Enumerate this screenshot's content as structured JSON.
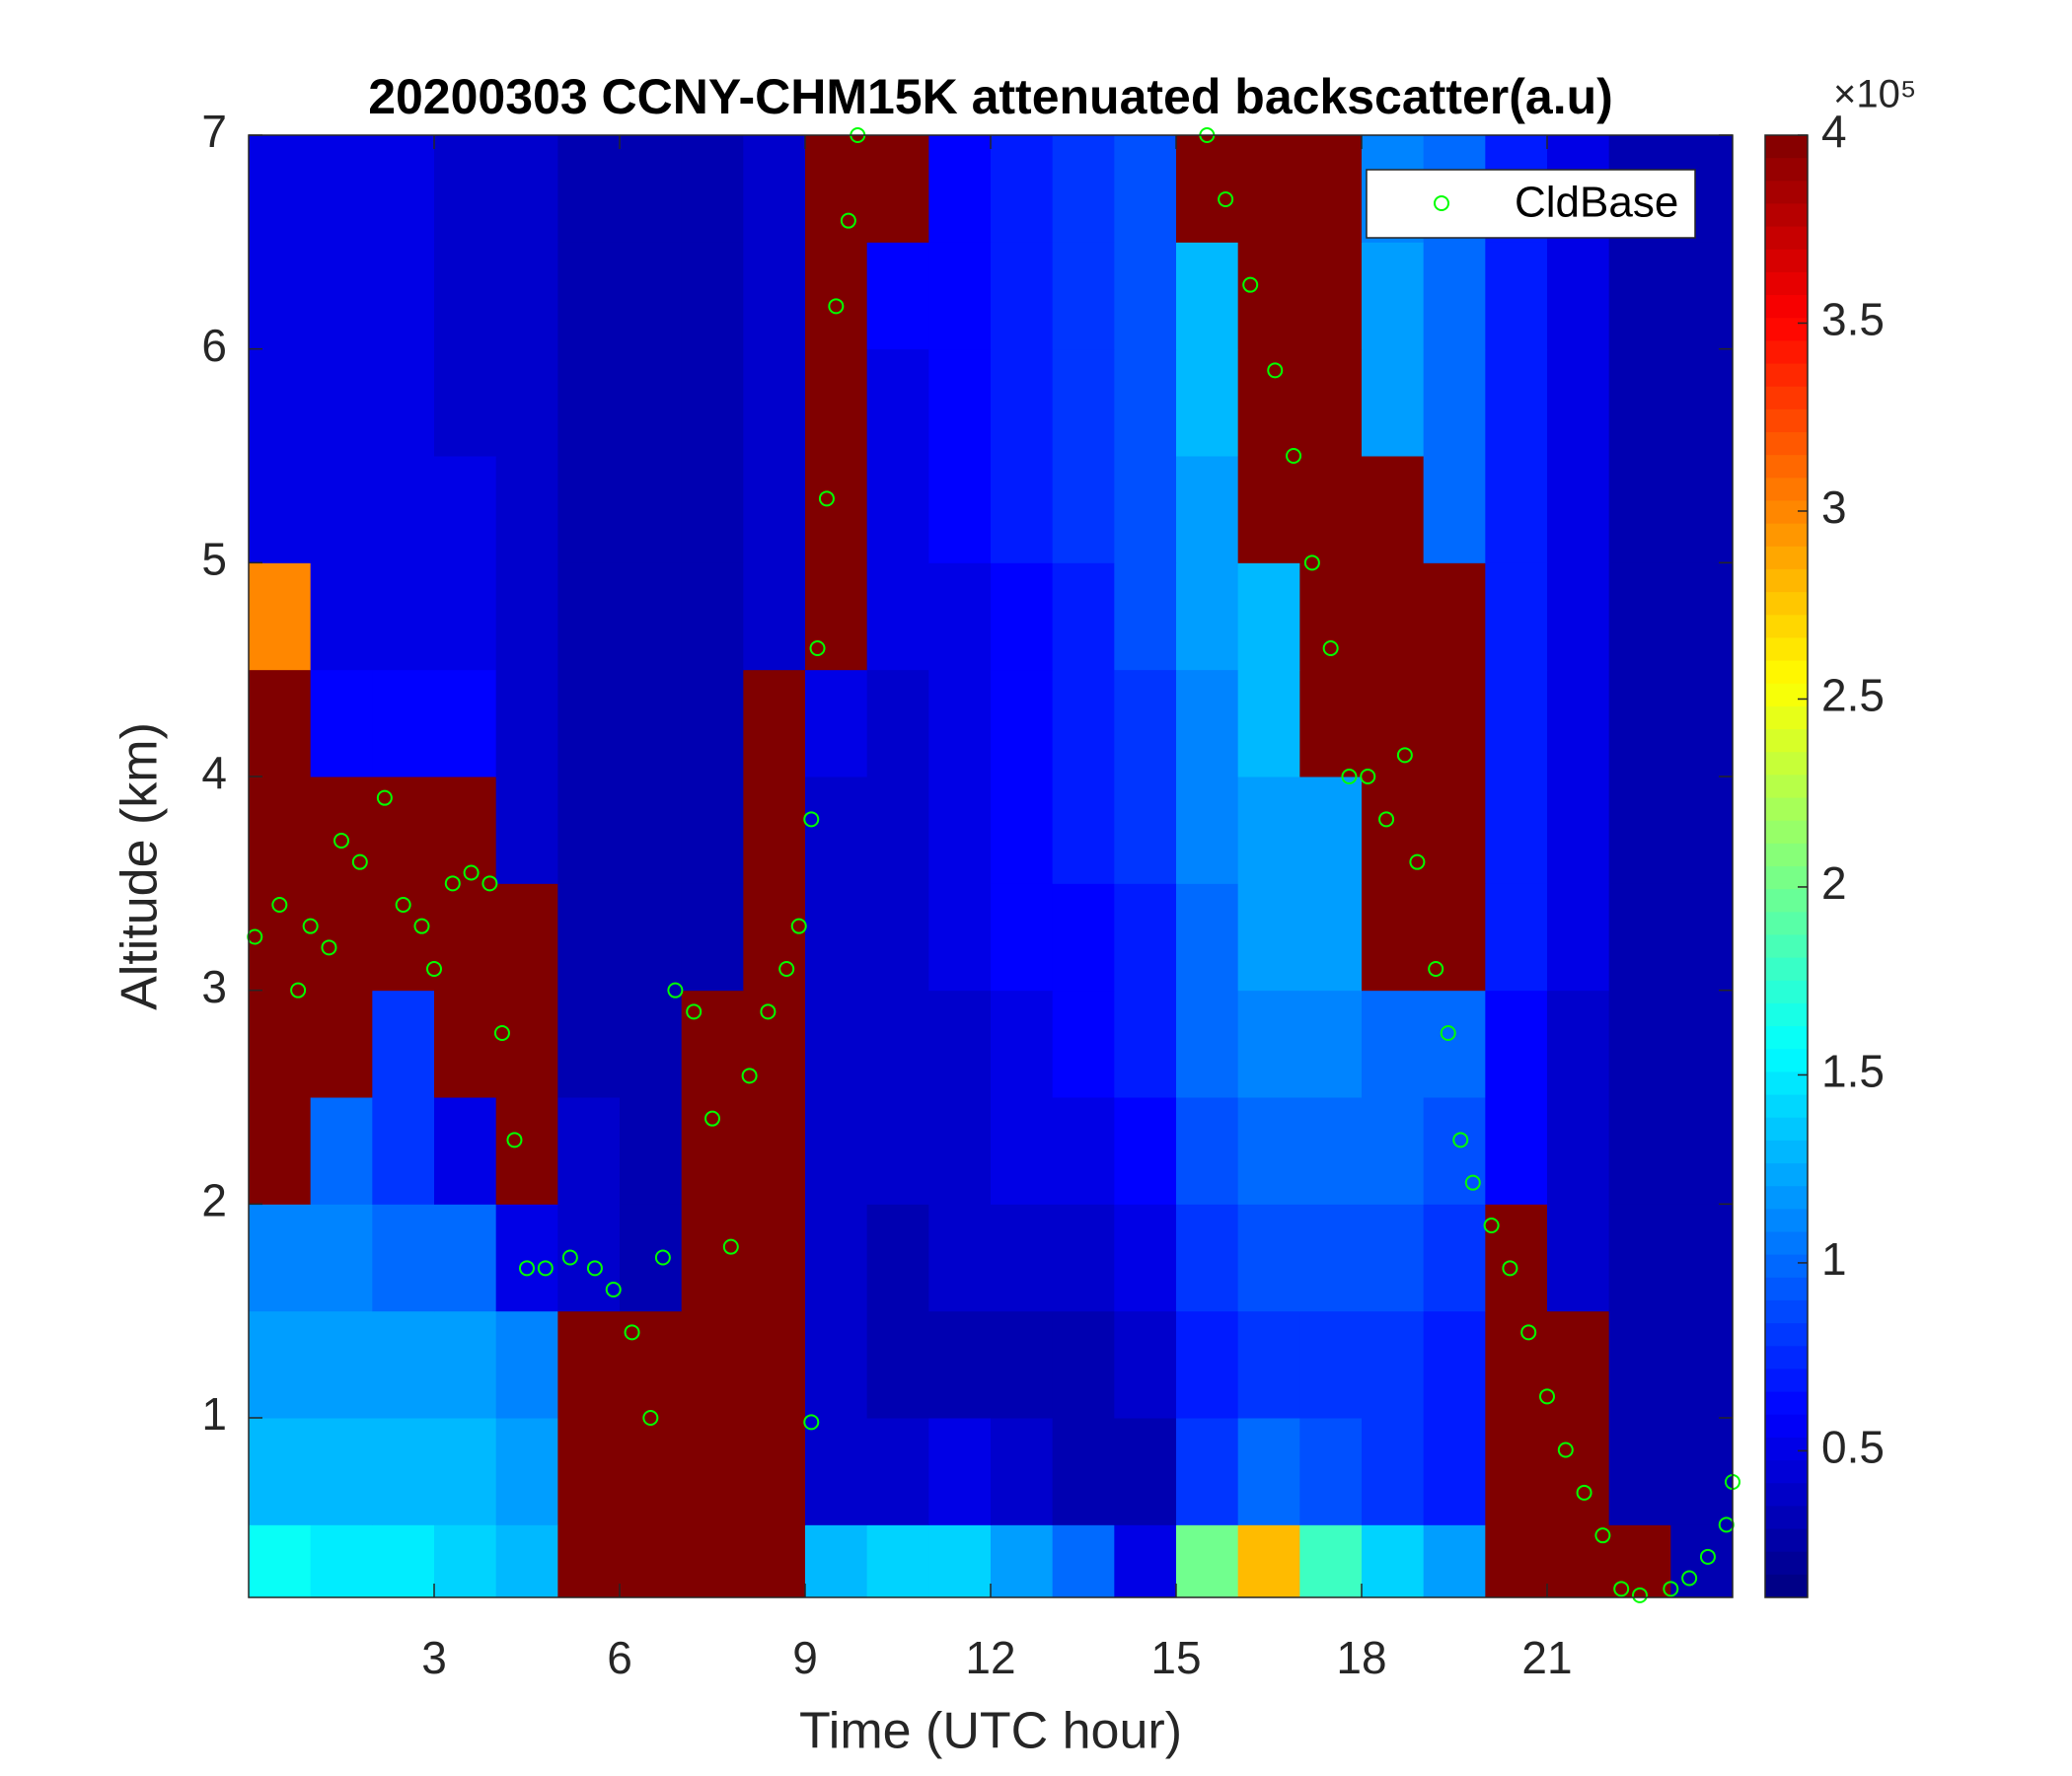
{
  "chart_data": {
    "type": "heatmap",
    "title": "20200303 CCNY-CHM15K attenuated backscatter(a.u)",
    "xlabel": "Time (UTC hour)",
    "ylabel": "Altitude (km)",
    "xlim": [
      0,
      24
    ],
    "ylim": [
      0.16,
      7
    ],
    "xticks": [
      3,
      6,
      9,
      12,
      15,
      18,
      21
    ],
    "yticks": [
      1,
      2,
      3,
      4,
      5,
      6,
      7
    ],
    "colormap": "jet",
    "clim": [
      0.11,
      4
    ],
    "cticks": [
      0.5,
      1,
      1.5,
      2,
      2.5,
      3,
      3.5,
      4
    ],
    "colorbar_multiplier": "×10⁵",
    "x_edges": [
      0,
      1,
      2,
      3,
      4,
      5,
      6,
      7,
      8,
      9,
      10,
      11,
      12,
      13,
      14,
      15,
      16,
      17,
      18,
      19,
      20,
      21,
      22,
      23,
      24
    ],
    "y_edges": [
      0.16,
      0.5,
      1,
      1.5,
      2,
      2.5,
      3,
      3.5,
      4,
      4.5,
      5,
      5.5,
      6,
      6.5,
      7
    ],
    "z": [
      [
        1.6,
        1.5,
        1.5,
        1.4,
        1.3,
        4,
        4,
        4,
        4,
        1.3,
        1.4,
        1.4,
        1.2,
        1.0,
        0.5,
        2.0,
        2.8,
        1.8,
        1.4,
        1.2,
        4,
        4,
        4,
        0.3
      ],
      [
        1.3,
        1.3,
        1.3,
        1.3,
        1.2,
        4,
        4,
        4,
        4,
        0.4,
        0.4,
        0.5,
        0.4,
        0.3,
        0.3,
        0.8,
        1.0,
        0.9,
        0.8,
        0.7,
        4,
        4,
        0.3,
        0.3
      ],
      [
        1.2,
        1.2,
        1.2,
        1.2,
        1.1,
        4,
        4,
        4,
        4,
        0.4,
        0.3,
        0.3,
        0.3,
        0.3,
        0.4,
        0.7,
        0.8,
        0.8,
        0.8,
        0.7,
        4,
        4,
        0.3,
        0.3
      ],
      [
        1.1,
        1.1,
        1.0,
        1.0,
        0.5,
        0.4,
        0.3,
        4,
        4,
        0.4,
        0.3,
        0.4,
        0.4,
        0.4,
        0.5,
        0.8,
        0.9,
        0.9,
        0.9,
        0.8,
        4,
        0.4,
        0.3,
        0.3
      ],
      [
        4,
        1.0,
        0.8,
        0.5,
        4,
        0.4,
        0.3,
        4,
        4,
        0.4,
        0.4,
        0.4,
        0.5,
        0.5,
        0.6,
        0.9,
        1.0,
        1.0,
        1.0,
        0.9,
        0.6,
        0.4,
        0.3,
        0.3
      ],
      [
        4,
        4,
        0.8,
        4,
        4,
        0.3,
        0.3,
        4,
        4,
        0.4,
        0.4,
        0.4,
        0.5,
        0.6,
        0.7,
        1.0,
        1.1,
        1.1,
        1.0,
        1.0,
        0.6,
        0.4,
        0.3,
        0.3
      ],
      [
        4,
        4,
        4,
        4,
        4,
        0.3,
        0.3,
        0.3,
        4,
        0.4,
        0.4,
        0.5,
        0.6,
        0.6,
        0.7,
        1.0,
        1.2,
        1.2,
        4,
        4,
        0.7,
        0.5,
        0.3,
        0.3
      ],
      [
        4,
        4,
        4,
        4,
        0.4,
        0.3,
        0.3,
        0.3,
        4,
        0.4,
        0.4,
        0.5,
        0.6,
        0.7,
        0.8,
        1.1,
        1.2,
        1.2,
        4,
        4,
        0.7,
        0.5,
        0.3,
        0.3
      ],
      [
        4,
        0.6,
        0.6,
        0.6,
        0.4,
        0.3,
        0.3,
        0.3,
        4,
        0.5,
        0.4,
        0.5,
        0.6,
        0.7,
        0.8,
        1.1,
        1.3,
        4,
        4,
        4,
        0.7,
        0.5,
        0.3,
        0.3
      ],
      [
        3,
        0.5,
        0.5,
        0.5,
        0.4,
        0.3,
        0.3,
        0.3,
        0.4,
        4,
        0.5,
        0.5,
        0.6,
        0.7,
        0.9,
        1.2,
        1.3,
        4,
        4,
        4,
        0.7,
        0.5,
        0.3,
        0.3
      ],
      [
        0.5,
        0.5,
        0.5,
        0.5,
        0.4,
        0.3,
        0.3,
        0.3,
        0.4,
        4,
        0.5,
        0.6,
        0.7,
        0.8,
        0.9,
        1.2,
        4,
        4,
        4,
        1.0,
        0.7,
        0.5,
        0.3,
        0.3
      ],
      [
        0.5,
        0.5,
        0.5,
        0.4,
        0.4,
        0.3,
        0.3,
        0.3,
        0.4,
        4,
        0.5,
        0.6,
        0.7,
        0.8,
        0.9,
        1.3,
        4,
        4,
        1.2,
        1.0,
        0.7,
        0.5,
        0.3,
        0.3
      ],
      [
        0.5,
        0.5,
        0.5,
        0.4,
        0.4,
        0.3,
        0.3,
        0.3,
        0.4,
        4,
        0.6,
        0.6,
        0.7,
        0.8,
        0.9,
        1.3,
        4,
        4,
        1.2,
        1.0,
        0.7,
        0.5,
        0.3,
        0.3
      ],
      [
        0.5,
        0.5,
        0.5,
        0.4,
        0.4,
        0.3,
        0.3,
        0.3,
        0.4,
        4,
        4,
        0.6,
        0.7,
        0.8,
        0.9,
        4,
        4,
        4,
        1.1,
        1.0,
        0.7,
        0.5,
        0.3,
        0.3
      ]
    ],
    "series": [
      {
        "name": "CldBase",
        "type": "scatter",
        "color": "#00ff00",
        "x": [
          0.1,
          0.5,
          0.8,
          1.0,
          1.3,
          1.5,
          1.8,
          2.2,
          2.5,
          2.8,
          3.0,
          3.3,
          3.6,
          3.9,
          4.1,
          4.3,
          4.5,
          4.8,
          5.2,
          5.6,
          5.9,
          6.2,
          6.5,
          6.7,
          6.9,
          7.2,
          7.5,
          7.8,
          8.1,
          8.4,
          8.7,
          8.9,
          9.1,
          9.1,
          9.2,
          9.35,
          9.5,
          9.7,
          9.85,
          15.5,
          15.8,
          16.2,
          16.6,
          16.9,
          17.2,
          17.5,
          17.8,
          18.1,
          18.4,
          18.7,
          18.9,
          19.2,
          19.4,
          19.6,
          19.8,
          20.1,
          20.4,
          20.7,
          21.0,
          21.3,
          21.6,
          21.9,
          22.2,
          22.5,
          23.0,
          23.3,
          23.6,
          23.9,
          24.0
        ],
        "y": [
          3.25,
          3.4,
          3.0,
          3.3,
          3.2,
          3.7,
          3.6,
          3.9,
          3.4,
          3.3,
          3.1,
          3.5,
          3.55,
          3.5,
          2.8,
          2.3,
          1.7,
          1.7,
          1.75,
          1.7,
          1.6,
          1.4,
          1.0,
          1.75,
          3.0,
          2.9,
          2.4,
          1.8,
          2.6,
          2.9,
          3.1,
          3.3,
          3.8,
          0.98,
          4.6,
          5.3,
          6.2,
          6.6,
          7.0,
          7.0,
          6.7,
          6.3,
          5.9,
          5.5,
          5.0,
          4.6,
          4.0,
          4.0,
          3.8,
          4.1,
          3.6,
          3.1,
          2.8,
          2.3,
          2.1,
          1.9,
          1.7,
          1.4,
          1.1,
          0.85,
          0.65,
          0.45,
          0.2,
          0.17,
          0.2,
          0.25,
          0.35,
          0.5,
          0.7
        ]
      }
    ],
    "legend": "upper right"
  }
}
